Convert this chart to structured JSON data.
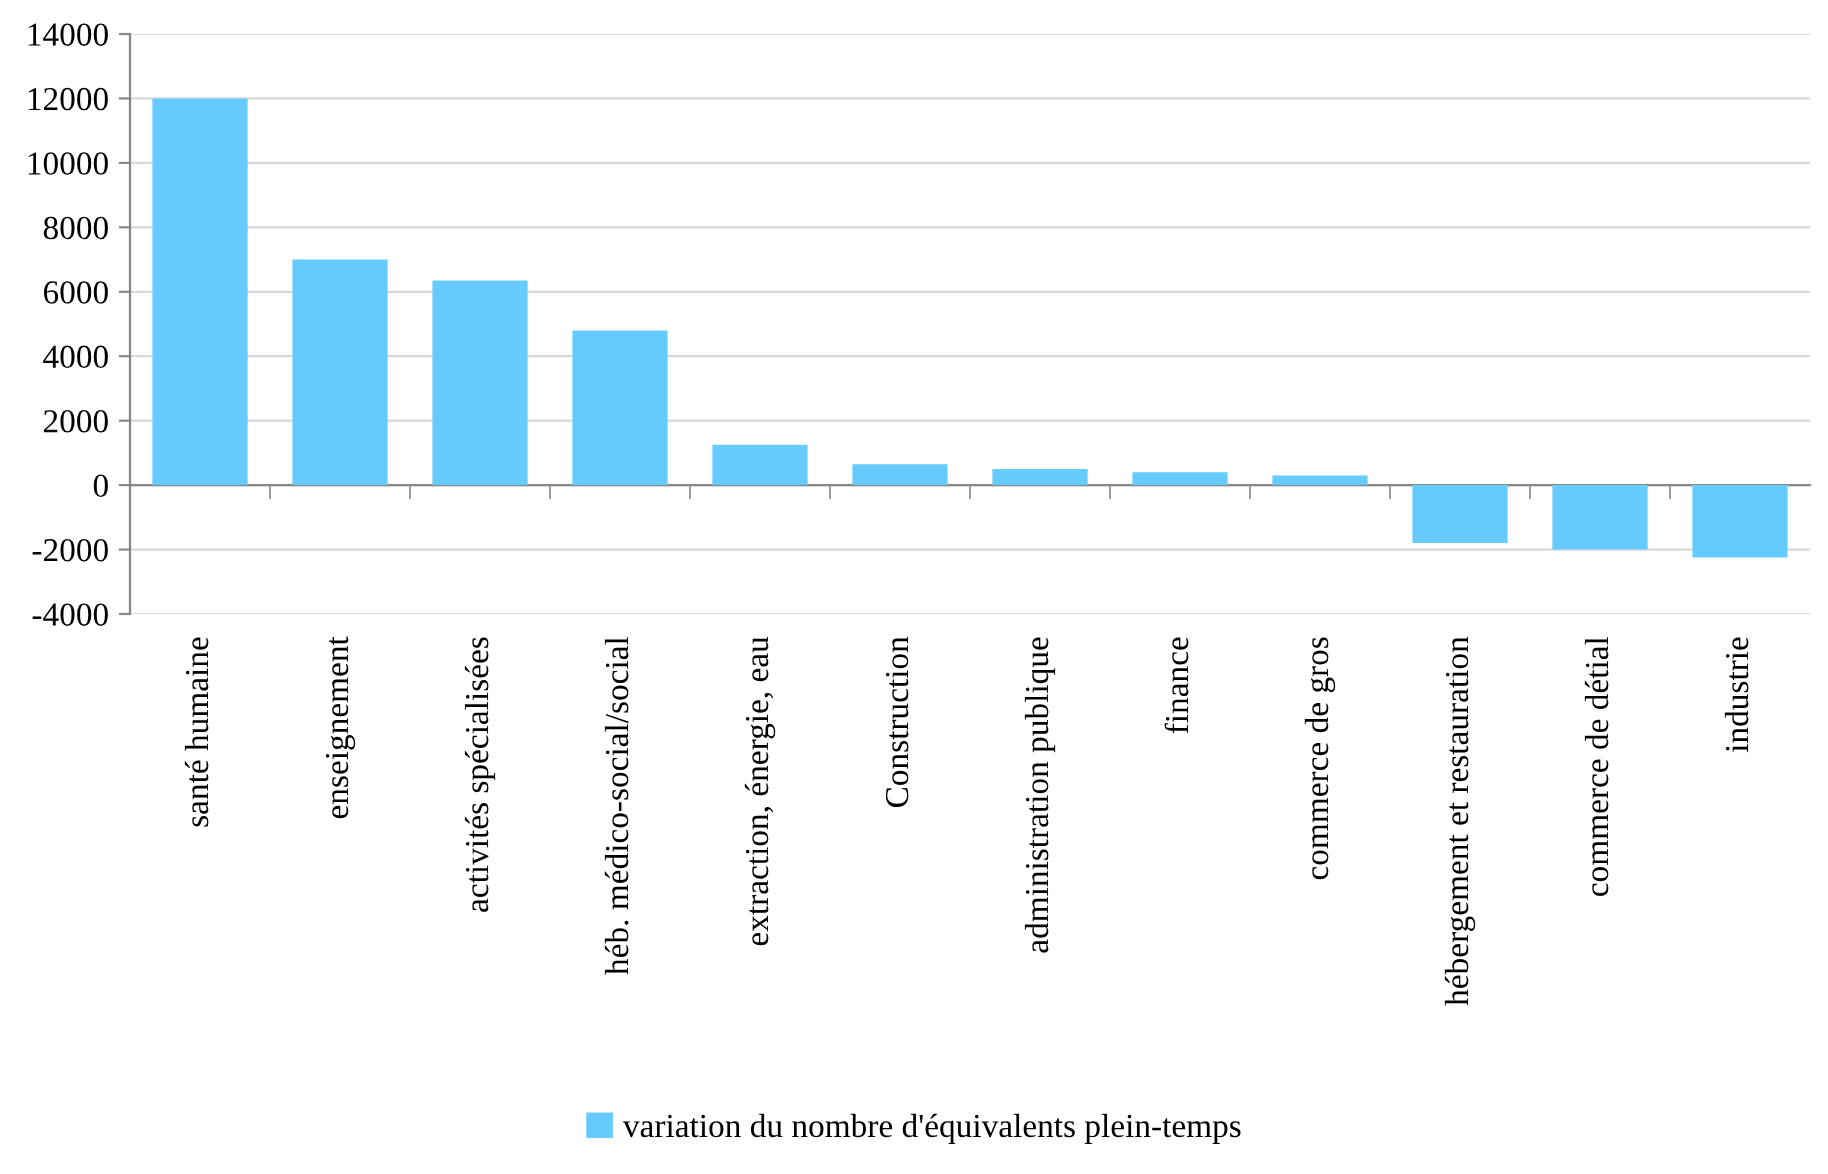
{
  "chart_data": {
    "type": "bar",
    "categories": [
      "santé humaine",
      "enseignement",
      "activités spécialisées",
      "héb. médico-social/social",
      "extraction, énergie, eau",
      "Construction",
      "administration publique",
      "finance",
      "commerce de gros",
      "hébergement et restauration",
      "commerce de détial",
      "industrie"
    ],
    "series": [
      {
        "name": "variation du nombre d'équivalents plein-temps",
        "color": "#66ccff",
        "values": [
          12000,
          7000,
          6350,
          4800,
          1250,
          650,
          500,
          400,
          300,
          -1800,
          -2000,
          -2250
        ]
      }
    ],
    "ylim": [
      -4000,
      14000
    ],
    "yticks": [
      -4000,
      -2000,
      0,
      2000,
      4000,
      6000,
      8000,
      10000,
      12000,
      14000
    ],
    "grid": "y",
    "legend": "bottom"
  }
}
